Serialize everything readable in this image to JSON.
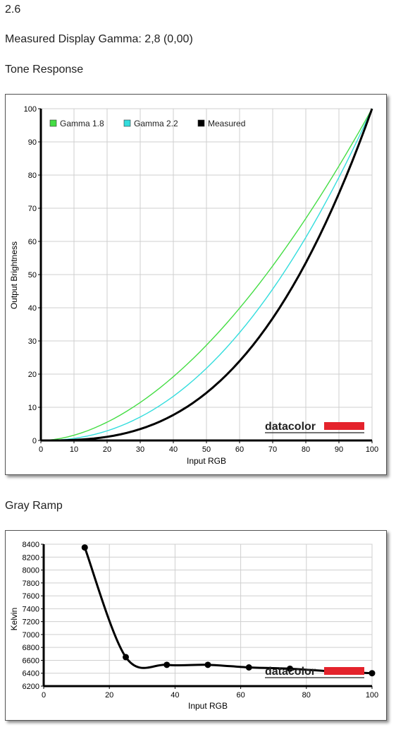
{
  "header": {
    "version": "2.6",
    "gamma_line": "Measured Display Gamma: 2,8 (0,00)"
  },
  "sections": {
    "tone_title": "Tone Response",
    "gray_title": "Gray Ramp"
  },
  "logo": {
    "text": "datacolor",
    "bar_color": "#e4232c"
  },
  "chart_data": [
    {
      "type": "line",
      "xlabel": "Input RGB",
      "ylabel": "Output Brightness",
      "xlim": [
        0,
        100
      ],
      "ylim": [
        0,
        100
      ],
      "xticks": [
        0,
        10,
        20,
        30,
        40,
        50,
        60,
        70,
        80,
        90,
        100
      ],
      "yticks": [
        0,
        10,
        20,
        30,
        40,
        50,
        60,
        70,
        80,
        90,
        100
      ],
      "grid": true,
      "legend_position": "top-left",
      "series": [
        {
          "name": "Gamma 1.8",
          "color": "#44dd44",
          "gamma": 1.8,
          "x": [
            0,
            5,
            10,
            15,
            20,
            25,
            30,
            35,
            40,
            45,
            50,
            55,
            60,
            65,
            70,
            75,
            80,
            85,
            90,
            95,
            100
          ],
          "y": [
            0,
            0.5,
            1.6,
            3.3,
            5.5,
            8.2,
            11.5,
            15.1,
            19.2,
            23.8,
            28.7,
            34.1,
            39.9,
            46.1,
            52.6,
            59.6,
            66.9,
            74.6,
            82.7,
            91.2,
            100
          ]
        },
        {
          "name": "Gamma 2.2",
          "color": "#33dddd",
          "gamma": 2.2,
          "x": [
            0,
            5,
            10,
            15,
            20,
            25,
            30,
            35,
            40,
            45,
            50,
            55,
            60,
            65,
            70,
            75,
            80,
            85,
            90,
            95,
            100
          ],
          "y": [
            0,
            0.1,
            0.6,
            1.5,
            2.9,
            4.7,
            7.1,
            9.9,
            13.3,
            17.3,
            21.8,
            26.8,
            32.5,
            38.7,
            45.6,
            53.1,
            61.2,
            69.9,
            79.3,
            89.3,
            100
          ]
        },
        {
          "name": "Measured",
          "color": "#000000",
          "gamma": 2.8,
          "x": [
            0,
            5,
            10,
            15,
            20,
            25,
            30,
            35,
            40,
            45,
            50,
            55,
            60,
            65,
            70,
            75,
            80,
            85,
            90,
            95,
            100
          ],
          "y": [
            0,
            0,
            0.2,
            0.5,
            1.1,
            2.1,
            3.4,
            5.3,
            7.7,
            10.7,
            14.4,
            18.8,
            23.9,
            29.9,
            36.8,
            44.7,
            53.5,
            63.4,
            74.5,
            86.6,
            100
          ]
        }
      ]
    },
    {
      "type": "line",
      "xlabel": "Input RGB",
      "ylabel": "Kelvin",
      "xlim": [
        0,
        100
      ],
      "ylim": [
        6200,
        8400
      ],
      "xticks": [
        0,
        20,
        40,
        60,
        80,
        100
      ],
      "yticks": [
        6200,
        6400,
        6600,
        6800,
        7000,
        7200,
        7400,
        7600,
        7800,
        8000,
        8200,
        8400
      ],
      "grid": true,
      "series": [
        {
          "color": "#000000",
          "x": [
            12.5,
            25,
            37.5,
            50,
            62.5,
            75,
            87.5,
            100
          ],
          "y": [
            8350,
            6650,
            6530,
            6530,
            6490,
            6470,
            6430,
            6400
          ]
        }
      ]
    }
  ]
}
